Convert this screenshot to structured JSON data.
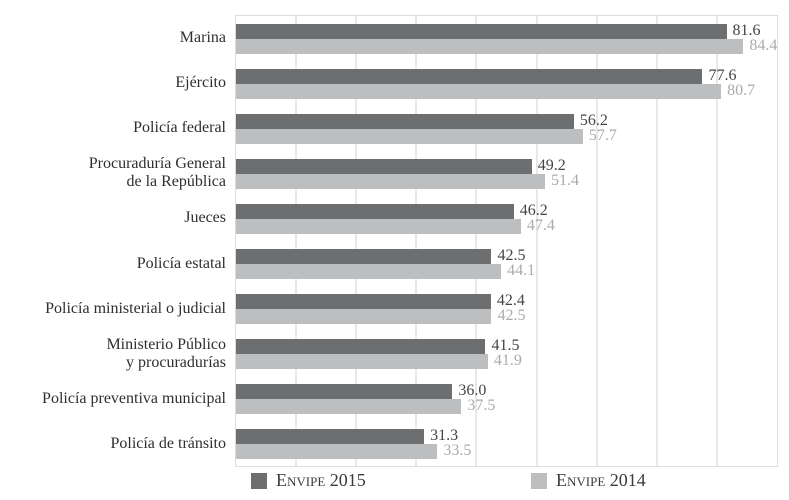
{
  "chart_data": {
    "type": "bar",
    "orientation": "horizontal",
    "title": "",
    "xlabel": "",
    "ylabel": "",
    "xlim": [
      0,
      90
    ],
    "gridline_interval": 10,
    "grid": true,
    "legend_position": "bottom",
    "categories": [
      "Marina",
      "Ejército",
      "Policía federal",
      "Procuraduría General\nde la República",
      "Jueces",
      "Policía estatal",
      "Policía ministerial o judicial",
      "Ministerio Público\ny procuradurías",
      "Policía preventiva municipal",
      "Policía de tránsito"
    ],
    "series": [
      {
        "name": "Envipe 2015",
        "color": "#6d6e70",
        "label_color": "#434446",
        "values": [
          81.6,
          77.6,
          56.2,
          49.2,
          46.2,
          42.5,
          42.4,
          41.5,
          36.0,
          31.3
        ]
      },
      {
        "name": "Envipe 2014",
        "color": "#bcbec0",
        "label_color": "#a9abad",
        "values": [
          84.4,
          80.7,
          57.7,
          51.4,
          47.4,
          44.1,
          42.5,
          41.9,
          37.5,
          33.5
        ]
      }
    ]
  },
  "colors": {
    "grid": "#e7e8e9",
    "plot_border": "#dcdde0",
    "category_text": "#2d2e30",
    "legend_text": "#3a3b3d",
    "background": "#ffffff"
  }
}
